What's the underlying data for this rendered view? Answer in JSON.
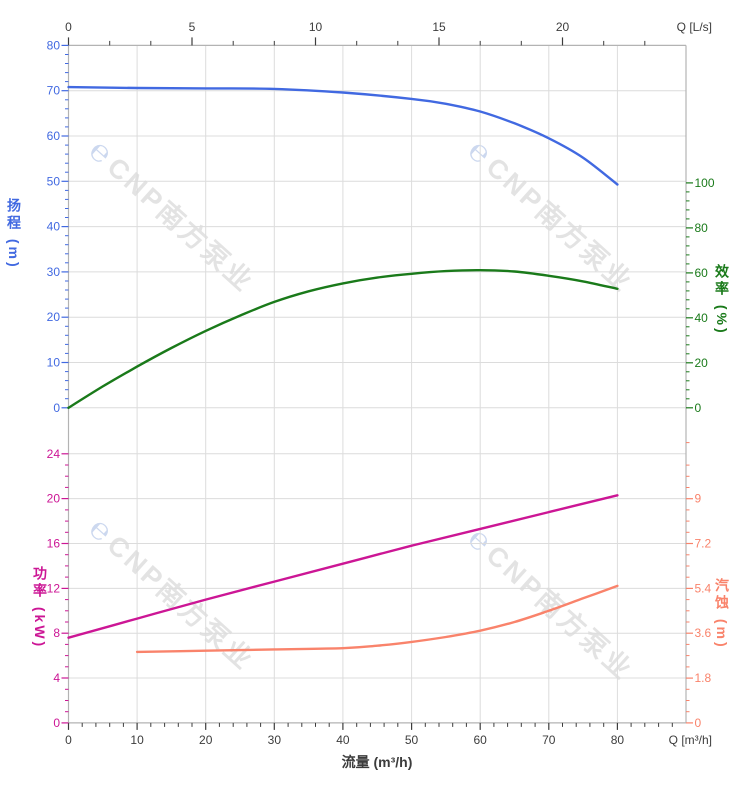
{
  "watermark": {
    "logo": "℮",
    "text": "CNP南方泵业"
  },
  "style": {
    "background": "#ffffff",
    "grid_color": "#dcdcdc",
    "frame_color": "#b3b3b3",
    "text_color": "#3c3c3c"
  },
  "chart_data": {
    "type": "line",
    "title": "",
    "x_bottom": {
      "title": "流量 (m³/h)",
      "unit_label": "Q [m³/h]",
      "max": 90,
      "ticks": [
        {
          "v": 0,
          "t": "0"
        },
        {
          "v": 10,
          "t": "10"
        },
        {
          "v": 20,
          "t": "20"
        },
        {
          "v": 30,
          "t": "30"
        },
        {
          "v": 40,
          "t": "40"
        },
        {
          "v": 50,
          "t": "50"
        },
        {
          "v": 60,
          "t": "60"
        },
        {
          "v": 70,
          "t": "70"
        },
        {
          "v": 80,
          "t": "80"
        }
      ],
      "major_step": 10,
      "minor_step": 2,
      "minor_max": 88
    },
    "x_top": {
      "unit_label": "Q [L/s]",
      "max": 25,
      "ticks": [
        {
          "v": 0,
          "t": "0"
        },
        {
          "v": 5,
          "t": "5"
        },
        {
          "v": 10,
          "t": "10"
        },
        {
          "v": 15,
          "t": "15"
        },
        {
          "v": 20,
          "t": "20"
        }
      ],
      "major_step": 5,
      "minor_step": 1.66667,
      "minor_max": 23.35
    },
    "head_axis": {
      "title": "扬程 (m)",
      "color": "#4169e1",
      "range": [
        0,
        80
      ],
      "ticks": [
        {
          "v": 0,
          "t": "0"
        },
        {
          "v": 10,
          "t": "10"
        },
        {
          "v": 20,
          "t": "20"
        },
        {
          "v": 30,
          "t": "30"
        },
        {
          "v": 40,
          "t": "40"
        },
        {
          "v": 50,
          "t": "50"
        },
        {
          "v": 60,
          "t": "60"
        },
        {
          "v": 70,
          "t": "70"
        },
        {
          "v": 80,
          "t": "80"
        }
      ],
      "major_step": 10,
      "minor_step": 2,
      "minor_max": 80
    },
    "eff_axis": {
      "title": "效率 (%)",
      "color": "#1a7a1a",
      "range": [
        0,
        100
      ],
      "ticks": [
        {
          "v": 0,
          "t": "0"
        },
        {
          "v": 20,
          "t": "20"
        },
        {
          "v": 40,
          "t": "40"
        },
        {
          "v": 60,
          "t": "60"
        },
        {
          "v": 80,
          "t": "80"
        },
        {
          "v": 100,
          "t": "100"
        }
      ],
      "major_step": 20,
      "minor_step": 4,
      "minor_max": 100
    },
    "power_axis": {
      "title": "功率 (kW)",
      "color": "#cc1695",
      "range": [
        0,
        24
      ],
      "ticks": [
        {
          "v": 0,
          "t": "0"
        },
        {
          "v": 4,
          "t": "4"
        },
        {
          "v": 8,
          "t": "8"
        },
        {
          "v": 12,
          "t": "12"
        },
        {
          "v": 16,
          "t": "16"
        },
        {
          "v": 20,
          "t": "20"
        },
        {
          "v": 24,
          "t": "24"
        }
      ],
      "major_step": 4,
      "minor_step": 1,
      "minor_max": 24
    },
    "npsh_axis": {
      "title": "汽蚀 (m)",
      "color": "#f9836b",
      "range": [
        0,
        9
      ],
      "ticks": [
        {
          "v": 0,
          "t": "0"
        },
        {
          "v": 1.8,
          "t": "1.8"
        },
        {
          "v": 3.6,
          "t": "3.6"
        },
        {
          "v": 5.4,
          "t": "5.4"
        },
        {
          "v": 7.2,
          "t": "7.2"
        },
        {
          "v": 9,
          "t": "9"
        }
      ],
      "major_step": 1.8,
      "minor_step": 0.45,
      "minor_max": 11.25
    },
    "series": [
      {
        "name": "head",
        "scale": "head",
        "color": "#4169e1",
        "points": [
          [
            0,
            70.8
          ],
          [
            10,
            70.6
          ],
          [
            20,
            70.5
          ],
          [
            30,
            70.4
          ],
          [
            40,
            69.6
          ],
          [
            50,
            68.2
          ],
          [
            55,
            67.1
          ],
          [
            60,
            65.4
          ],
          [
            65,
            62.8
          ],
          [
            70,
            59.5
          ],
          [
            75,
            55.2
          ],
          [
            80,
            49.3
          ]
        ]
      },
      {
        "name": "efficiency",
        "scale": "eff",
        "color": "#1a7a1a",
        "points": [
          [
            0,
            0
          ],
          [
            5,
            9.5
          ],
          [
            10,
            18.3
          ],
          [
            15,
            26.6
          ],
          [
            20,
            34.2
          ],
          [
            25,
            41.0
          ],
          [
            30,
            47.1
          ],
          [
            35,
            51.8
          ],
          [
            40,
            55.3
          ],
          [
            45,
            57.9
          ],
          [
            50,
            59.6
          ],
          [
            55,
            60.8
          ],
          [
            60,
            61.2
          ],
          [
            65,
            60.6
          ],
          [
            70,
            58.7
          ],
          [
            75,
            56.2
          ],
          [
            80,
            52.9
          ]
        ]
      },
      {
        "name": "power",
        "scale": "power",
        "color": "#cc1695",
        "points": [
          [
            0,
            7.6
          ],
          [
            10,
            9.3
          ],
          [
            20,
            11.0
          ],
          [
            30,
            12.6
          ],
          [
            40,
            14.2
          ],
          [
            50,
            15.8
          ],
          [
            60,
            17.3
          ],
          [
            70,
            18.8
          ],
          [
            80,
            20.3
          ]
        ]
      },
      {
        "name": "npsh",
        "scale": "npsh",
        "color": "#f9836b",
        "points": [
          [
            10,
            2.85
          ],
          [
            20,
            2.9
          ],
          [
            30,
            2.95
          ],
          [
            40,
            3.0
          ],
          [
            45,
            3.1
          ],
          [
            50,
            3.25
          ],
          [
            55,
            3.45
          ],
          [
            60,
            3.7
          ],
          [
            65,
            4.05
          ],
          [
            70,
            4.5
          ],
          [
            75,
            5.0
          ],
          [
            80,
            5.5
          ]
        ]
      }
    ]
  }
}
